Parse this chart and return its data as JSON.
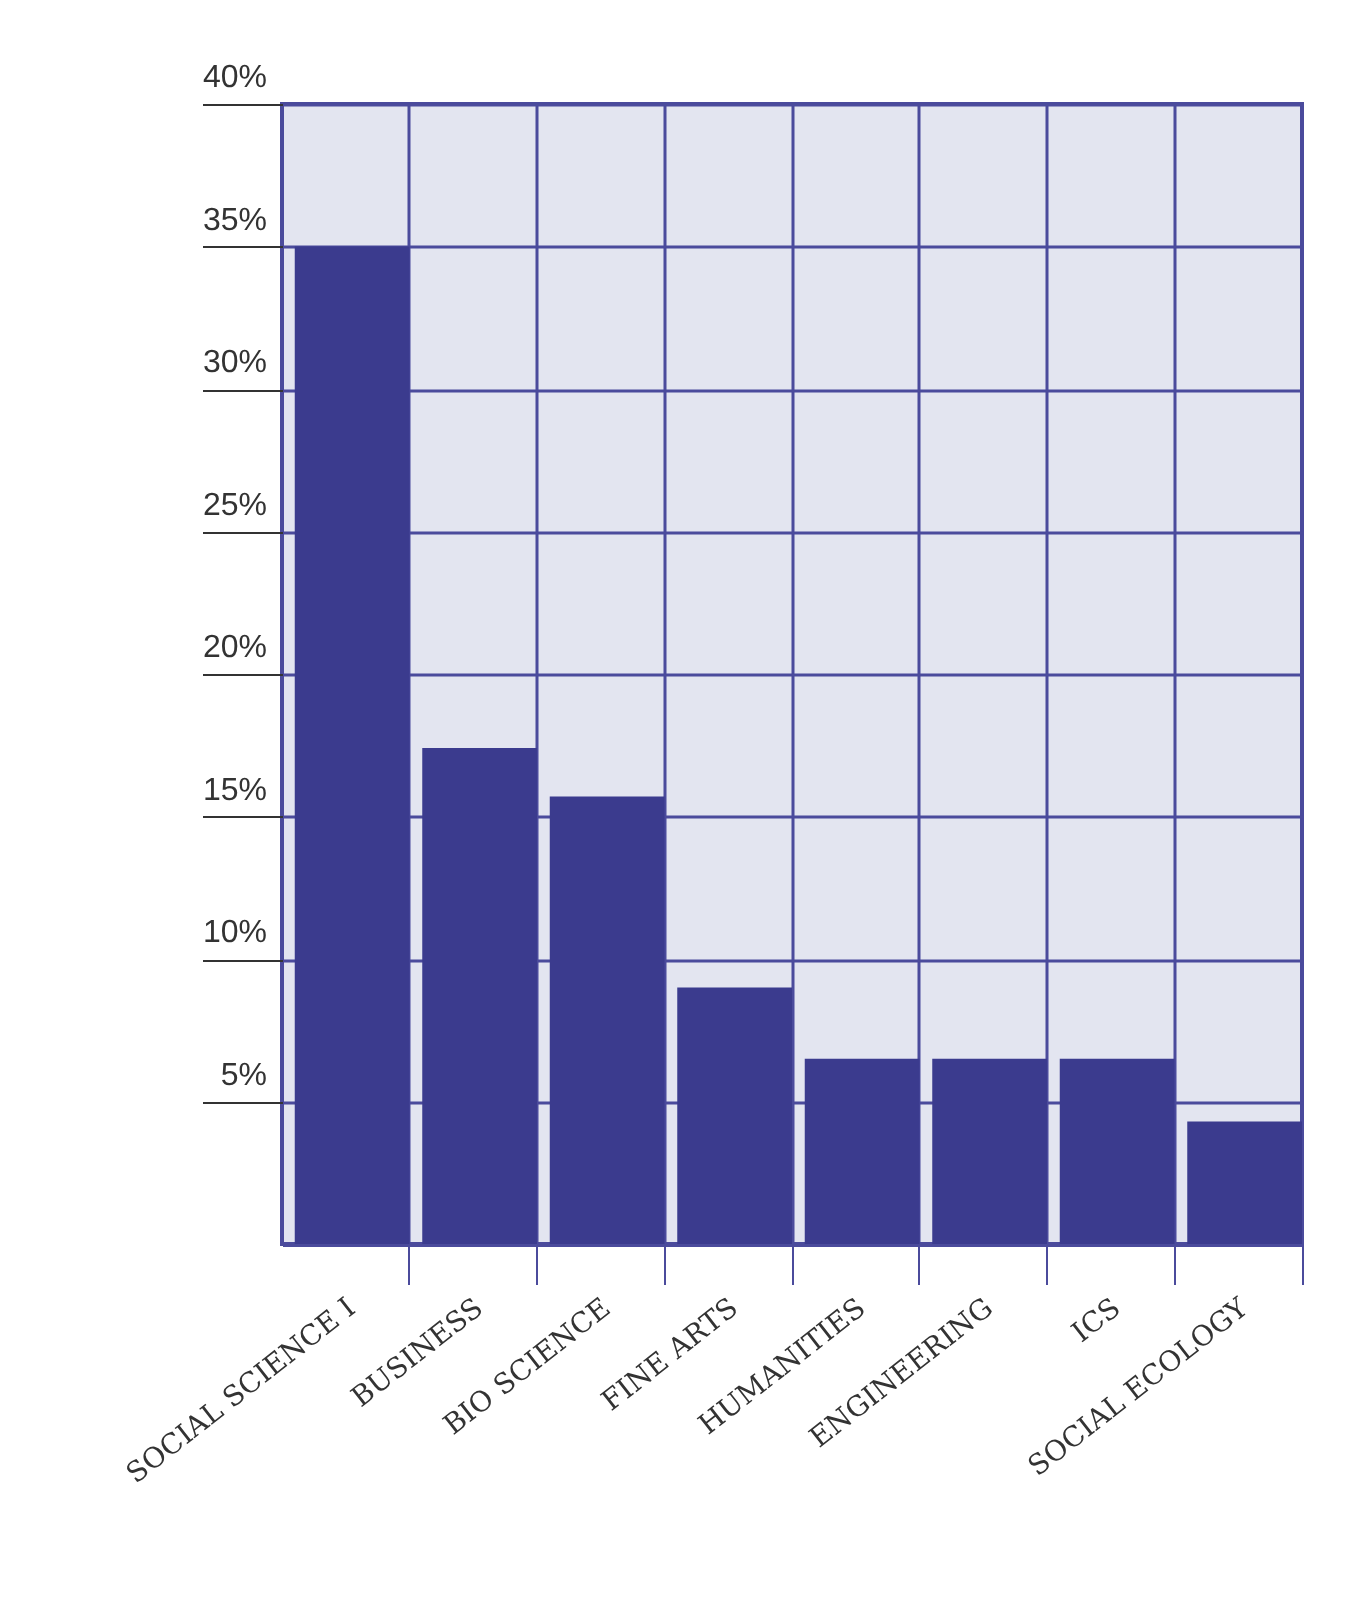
{
  "chart_data": {
    "type": "bar",
    "categories": [
      "SOCIAL SCIENCE I",
      "BUSINESS",
      "BIO SCIENCE",
      "FINE ARTS",
      "HUMANITIES",
      "ENGINEERING",
      "ICS",
      "SOCIAL ECOLOGY"
    ],
    "values": [
      35,
      17.4,
      15.7,
      9,
      6.5,
      6.5,
      6.5,
      4.3
    ],
    "color": "#3b3b8e",
    "ylim": [
      0,
      40
    ],
    "yticks": [
      {
        "value": 5,
        "label": "5%"
      },
      {
        "value": 10,
        "label": "10%"
      },
      {
        "value": 15,
        "label": "15%"
      },
      {
        "value": 20,
        "label": "20%"
      },
      {
        "value": 25,
        "label": "25%"
      },
      {
        "value": 30,
        "label": "30%"
      },
      {
        "value": 35,
        "label": "35%"
      },
      {
        "value": 40,
        "label": "40%"
      }
    ],
    "grid": true
  }
}
